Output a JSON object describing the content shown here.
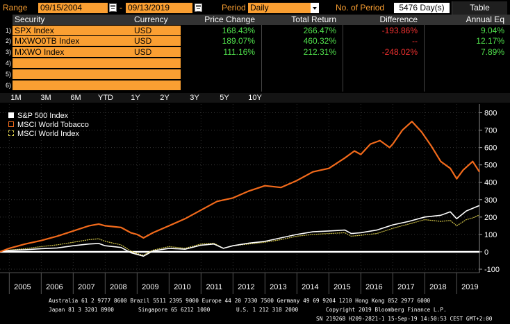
{
  "toolbar": {
    "range_label": "Range",
    "start_date": "09/15/2004",
    "end_date": "09/13/2019",
    "date_separator": "-",
    "period_label": "Period",
    "period_value": "Daily",
    "no_of_period_label": "No. of Period",
    "no_of_period_value": "5476 Day(s)",
    "table_button": "Table"
  },
  "table": {
    "headers": [
      "Security",
      "Currency",
      "Price Change",
      "Total Return",
      "Difference",
      "Annual Eq"
    ],
    "rows": [
      {
        "num": "1)",
        "security": "SPX Index",
        "currency": "USD",
        "price_change": "168.43%",
        "total_return": "266.47%",
        "difference": "-193.86%",
        "annual_eq": "9.04%"
      },
      {
        "num": "2)",
        "security": "MXWO0TB Index",
        "currency": "USD",
        "price_change": "189.07%",
        "total_return": "460.32%",
        "difference": "--",
        "annual_eq": "12.17%"
      },
      {
        "num": "3)",
        "security": "MXWO Index",
        "currency": "USD",
        "price_change": "111.16%",
        "total_return": "212.31%",
        "difference": "-248.02%",
        "annual_eq": "7.89%"
      },
      {
        "num": "4)",
        "security": "",
        "currency": "",
        "price_change": "",
        "total_return": "",
        "difference": "",
        "annual_eq": ""
      },
      {
        "num": "5)",
        "security": "",
        "currency": "",
        "price_change": "",
        "total_return": "",
        "difference": "",
        "annual_eq": ""
      },
      {
        "num": "6)",
        "security": "",
        "currency": "",
        "price_change": "",
        "total_return": "",
        "difference": "",
        "annual_eq": ""
      }
    ]
  },
  "ranges": [
    "1M",
    "3M",
    "6M",
    "YTD",
    "1Y",
    "2Y",
    "3Y",
    "5Y",
    "10Y"
  ],
  "colors": {
    "accent": "#fa9f32",
    "positive": "#50e14c",
    "negative": "#f0302f",
    "spx": "#ffffff",
    "tobacco": "#f26a1b",
    "world": "#d6c94a"
  },
  "chart_data": {
    "type": "line",
    "xlabel": "",
    "ylabel": "",
    "ylim": [
      -120,
      850
    ],
    "xlim": [
      2004.71,
      2019.71
    ],
    "yticks": [
      -100,
      0,
      100,
      200,
      300,
      400,
      500,
      600,
      700,
      800
    ],
    "ytick_labels": [
      "-100",
      "0",
      "100",
      "200",
      "300",
      "400",
      "500",
      "600",
      "700",
      "800"
    ],
    "xtick_labels": [
      "2005",
      "2006",
      "2007",
      "2008",
      "2009",
      "2010",
      "2011",
      "2012",
      "2013",
      "2014",
      "2015",
      "2016",
      "2017",
      "2018",
      "2019"
    ],
    "legend_position": "top-left",
    "series": [
      {
        "name": "S&P 500 Index",
        "color": "#ffffff",
        "x": [
          2004.71,
          2005.0,
          2005.5,
          2006.0,
          2006.5,
          2007.0,
          2007.5,
          2007.8,
          2008.0,
          2008.5,
          2008.8,
          2009.0,
          2009.2,
          2009.5,
          2010.0,
          2010.5,
          2011.0,
          2011.4,
          2011.7,
          2012.0,
          2012.5,
          2013.0,
          2013.5,
          2014.0,
          2014.5,
          2015.0,
          2015.5,
          2015.7,
          2016.0,
          2016.5,
          2017.0,
          2017.5,
          2018.0,
          2018.5,
          2018.8,
          2019.0,
          2019.3,
          2019.5,
          2019.71
        ],
        "y": [
          0,
          8,
          12,
          18,
          22,
          35,
          45,
          48,
          35,
          25,
          -5,
          -15,
          -25,
          5,
          20,
          15,
          38,
          45,
          20,
          35,
          50,
          60,
          80,
          100,
          115,
          120,
          125,
          105,
          110,
          125,
          155,
          175,
          200,
          210,
          230,
          190,
          235,
          250,
          266
        ]
      },
      {
        "name": "MSCI World Tobacco",
        "color": "#f26a1b",
        "x": [
          2004.71,
          2005.0,
          2005.5,
          2006.0,
          2006.5,
          2007.0,
          2007.5,
          2007.8,
          2008.0,
          2008.5,
          2008.8,
          2009.0,
          2009.2,
          2009.5,
          2010.0,
          2010.5,
          2011.0,
          2011.5,
          2012.0,
          2012.5,
          2013.0,
          2013.5,
          2014.0,
          2014.5,
          2015.0,
          2015.5,
          2015.8,
          2016.0,
          2016.3,
          2016.6,
          2016.9,
          2017.0,
          2017.3,
          2017.6,
          2017.9,
          2018.2,
          2018.5,
          2018.8,
          2019.0,
          2019.2,
          2019.5,
          2019.71
        ],
        "y": [
          0,
          20,
          45,
          65,
          90,
          120,
          150,
          160,
          150,
          140,
          110,
          100,
          80,
          110,
          150,
          190,
          240,
          290,
          310,
          350,
          380,
          370,
          410,
          460,
          480,
          540,
          580,
          560,
          620,
          640,
          600,
          620,
          700,
          750,
          690,
          610,
          520,
          480,
          420,
          470,
          520,
          460
        ]
      },
      {
        "name": "MSCI World Index",
        "color": "#d6c94a",
        "x": [
          2004.71,
          2005.0,
          2005.5,
          2006.0,
          2006.5,
          2007.0,
          2007.5,
          2007.8,
          2008.0,
          2008.5,
          2008.8,
          2009.0,
          2009.2,
          2009.5,
          2010.0,
          2010.5,
          2011.0,
          2011.4,
          2011.7,
          2012.0,
          2012.5,
          2013.0,
          2013.5,
          2014.0,
          2014.5,
          2015.0,
          2015.5,
          2015.7,
          2016.0,
          2016.5,
          2017.0,
          2017.5,
          2018.0,
          2018.5,
          2018.8,
          2019.0,
          2019.3,
          2019.5,
          2019.71
        ],
        "y": [
          0,
          10,
          18,
          30,
          40,
          55,
          70,
          75,
          60,
          40,
          5,
          -10,
          -20,
          10,
          30,
          20,
          45,
          50,
          20,
          35,
          45,
          55,
          70,
          90,
          100,
          105,
          110,
          90,
          95,
          105,
          135,
          160,
          185,
          175,
          180,
          150,
          185,
          195,
          212
        ]
      }
    ]
  },
  "footer": {
    "line1": "Australia 61 2 9777 8600 Brazil 5511 2395 9000 Europe 44 20 7330 7500 Germany 49 69 9204 1210 Hong Kong 852 2977 6000",
    "line2a": "Japan 81 3 3201 8900",
    "line2b": "Singapore 65 6212 1000",
    "line2c": "U.S. 1 212 318 2000",
    "line2d": "Copyright 2019 Bloomberg Finance L.P.",
    "line3": "SN 219268 H209-2821-1 15-Sep-19 14:50:53 CEST GMT+2:00"
  }
}
